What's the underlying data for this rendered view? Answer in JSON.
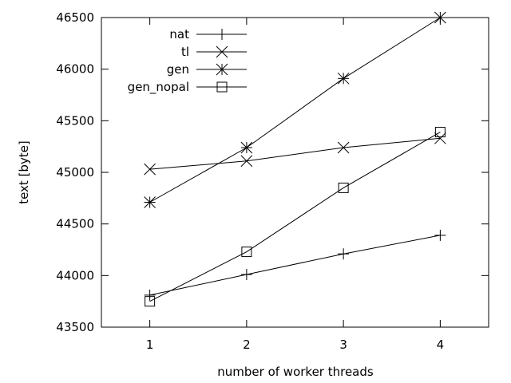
{
  "chart_data": {
    "type": "line",
    "title": "",
    "xlabel": "number of worker threads",
    "ylabel": "text [byte]",
    "x": [
      1,
      2,
      3,
      4
    ],
    "xticks": [
      "1",
      "2",
      "3",
      "4"
    ],
    "xlim": [
      0.5,
      4.5
    ],
    "ylim": [
      43500,
      46500
    ],
    "yticks": [
      "43500",
      "44000",
      "44500",
      "45000",
      "45500",
      "46000",
      "46500"
    ],
    "legend_position": "top-left",
    "series": [
      {
        "name": "nat",
        "marker": "plus",
        "values": [
          43810,
          44010,
          44210,
          44390
        ]
      },
      {
        "name": "tl",
        "marker": "cross",
        "values": [
          45030,
          45110,
          45240,
          45330
        ]
      },
      {
        "name": "gen",
        "marker": "star",
        "values": [
          44710,
          45240,
          45910,
          46500
        ]
      },
      {
        "name": "gen_nopal",
        "marker": "square",
        "values": [
          43750,
          44230,
          44850,
          45390
        ]
      }
    ]
  }
}
